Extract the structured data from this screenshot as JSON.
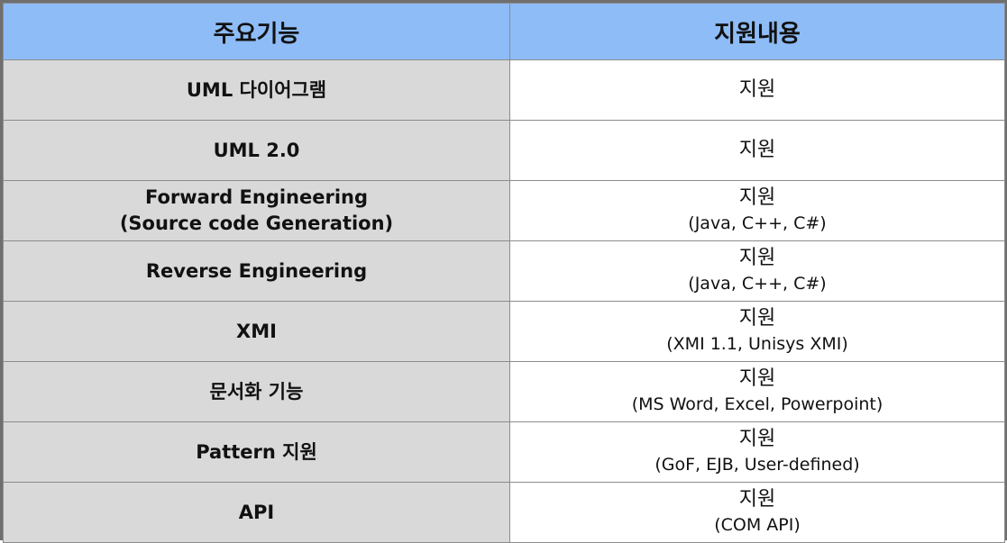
{
  "table": {
    "headers": [
      "주요기능",
      "지원내용"
    ],
    "rows": [
      {
        "feature": [
          "UML 다이어그램"
        ],
        "support_main": "지원",
        "support_sub": ""
      },
      {
        "feature": [
          "UML 2.0"
        ],
        "support_main": "지원",
        "support_sub": ""
      },
      {
        "feature": [
          "Forward Engineering",
          "(Source code Generation)"
        ],
        "support_main": "지원",
        "support_sub": "(Java, C++, C#)"
      },
      {
        "feature": [
          "Reverse Engineering"
        ],
        "support_main": "지원",
        "support_sub": "(Java, C++, C#)"
      },
      {
        "feature": [
          "XMI"
        ],
        "support_main": "지원",
        "support_sub": "(XMI 1.1, Unisys XMI)"
      },
      {
        "feature": [
          "문서화 기능"
        ],
        "support_main": "지원",
        "support_sub": "(MS Word, Excel, Powerpoint)"
      },
      {
        "feature": [
          "Pattern 지원"
        ],
        "support_main": "지원",
        "support_sub": "(GoF, EJB, User-defined)"
      },
      {
        "feature": [
          "API"
        ],
        "support_main": "지원",
        "support_sub": "(COM API)"
      }
    ]
  }
}
